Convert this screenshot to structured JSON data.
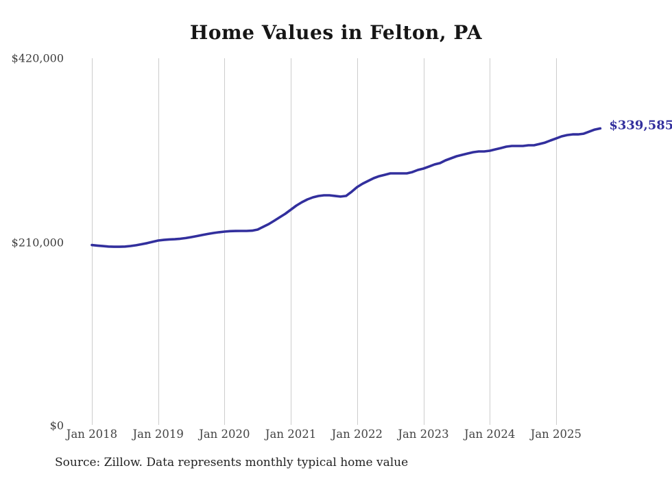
{
  "chart_data": {
    "type": "line",
    "title": "Home Values in Felton, PA",
    "source_note": "Source: Zillow. Data represents monthly typical home value",
    "end_label": "$339,585",
    "latest_value": 339585,
    "line_color": "#322f9d",
    "grid_color": "#cccccc",
    "ylim": [
      0,
      420000
    ],
    "grid": "vertical-only",
    "legend": "none",
    "frequency": "monthly",
    "y_ticks": [
      {
        "label": "$420,000",
        "value": 420000
      },
      {
        "label": "$210,000",
        "value": 210000
      },
      {
        "label": "$0",
        "value": 0
      }
    ],
    "x_ticks": [
      {
        "label": "Jan 2018",
        "month_index": 0
      },
      {
        "label": "Jan 2019",
        "month_index": 12
      },
      {
        "label": "Jan 2020",
        "month_index": 24
      },
      {
        "label": "Jan 2021",
        "month_index": 36
      },
      {
        "label": "Jan 2022",
        "month_index": 48
      },
      {
        "label": "Jan 2023",
        "month_index": 60
      },
      {
        "label": "Jan 2024",
        "month_index": 72
      },
      {
        "label": "Jan 2025",
        "month_index": 84
      }
    ],
    "x": [
      "Jan 2018",
      "Feb 2018",
      "Mar 2018",
      "Apr 2018",
      "May 2018",
      "Jun 2018",
      "Jul 2018",
      "Aug 2018",
      "Sep 2018",
      "Oct 2018",
      "Nov 2018",
      "Dec 2018",
      "Jan 2019",
      "Feb 2019",
      "Mar 2019",
      "Apr 2019",
      "May 2019",
      "Jun 2019",
      "Jul 2019",
      "Aug 2019",
      "Sep 2019",
      "Oct 2019",
      "Nov 2019",
      "Dec 2019",
      "Jan 2020",
      "Feb 2020",
      "Mar 2020",
      "Apr 2020",
      "May 2020",
      "Jun 2020",
      "Jul 2020",
      "Aug 2020",
      "Sep 2020",
      "Oct 2020",
      "Nov 2020",
      "Dec 2020",
      "Jan 2021",
      "Feb 2021",
      "Mar 2021",
      "Apr 2021",
      "May 2021",
      "Jun 2021",
      "Jul 2021",
      "Aug 2021",
      "Sep 2021",
      "Oct 2021",
      "Nov 2021",
      "Dec 2021",
      "Jan 2022",
      "Feb 2022",
      "Mar 2022",
      "Apr 2022",
      "May 2022",
      "Jun 2022",
      "Jul 2022",
      "Aug 2022",
      "Sep 2022",
      "Oct 2022",
      "Nov 2022",
      "Dec 2022",
      "Jan 2023",
      "Feb 2023",
      "Mar 2023",
      "Apr 2023",
      "May 2023",
      "Jun 2023",
      "Jul 2023",
      "Aug 2023",
      "Sep 2023",
      "Oct 2023",
      "Nov 2023",
      "Dec 2023",
      "Jan 2024",
      "Feb 2024",
      "Mar 2024",
      "Apr 2024",
      "May 2024",
      "Jun 2024",
      "Jul 2024",
      "Aug 2024",
      "Sep 2024",
      "Oct 2024",
      "Nov 2024",
      "Dec 2024",
      "Jan 2025",
      "Feb 2025",
      "Mar 2025",
      "Apr 2025",
      "May 2025",
      "Jun 2025",
      "Jul 2025",
      "Aug 2025",
      "Sep 2025"
    ],
    "series": [
      {
        "name": "Typical home value",
        "values": [
          206000,
          205400,
          204800,
          204300,
          204000,
          204000,
          204300,
          204900,
          205800,
          206900,
          208200,
          209700,
          211200,
          211900,
          212400,
          212700,
          213200,
          214000,
          215100,
          216300,
          217500,
          218700,
          219800,
          220700,
          221400,
          221900,
          222100,
          222200,
          222200,
          222500,
          223700,
          226900,
          230000,
          233900,
          237900,
          241800,
          246500,
          251200,
          255100,
          258300,
          260600,
          262200,
          263000,
          263000,
          262300,
          261500,
          262300,
          267000,
          272400,
          276300,
          279500,
          282600,
          284900,
          286500,
          288100,
          288100,
          288100,
          288100,
          289600,
          292000,
          293600,
          295900,
          298300,
          299900,
          303000,
          305400,
          307700,
          309300,
          310900,
          312400,
          313200,
          313200,
          314000,
          315600,
          317100,
          318700,
          319500,
          319500,
          319500,
          320300,
          320300,
          321800,
          323400,
          325800,
          328100,
          330500,
          332000,
          332800,
          332800,
          333600,
          335900,
          338300,
          339585
        ]
      }
    ]
  }
}
